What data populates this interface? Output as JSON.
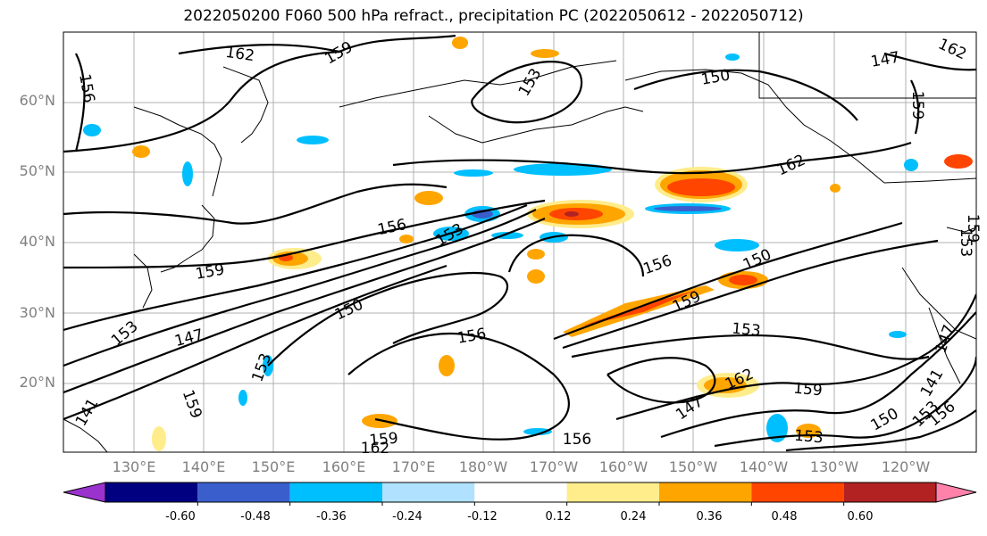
{
  "title": "2022050200 F060 500 hPa refract., precipitation PC (2022050612 - 2022050712)",
  "lat_labels": [
    "60°N",
    "50°N",
    "40°N",
    "30°N",
    "20°N"
  ],
  "lon_labels": [
    "130°E",
    "140°E",
    "150°E",
    "160°E",
    "170°E",
    "180°W",
    "170°W",
    "160°W",
    "150°W",
    "140°W",
    "130°W",
    "120°W"
  ],
  "colorbar": {
    "ticks": [
      "-0.60",
      "-0.48",
      "-0.36",
      "-0.24",
      "-0.12",
      "0.12",
      "0.24",
      "0.36",
      "0.48",
      "0.60"
    ],
    "colors": [
      "#9a32cd",
      "#000080",
      "#3a5fcd",
      "#00bfff",
      "#b0e2ff",
      "#ffffff",
      "#ffec8b",
      "#ffa500",
      "#ff4500",
      "#b22222",
      "#ff82ab"
    ]
  },
  "contour_labels": [
    "162",
    "159",
    "156",
    "153",
    "150",
    "147",
    "162",
    "159",
    "162",
    "156",
    "153",
    "159",
    "156",
    "150",
    "150",
    "159",
    "153",
    "153",
    "147",
    "156",
    "159",
    "162",
    "153",
    "159",
    "147",
    "159",
    "162",
    "150",
    "153",
    "156",
    "141",
    "159",
    "156",
    "153",
    "153",
    "147",
    "141"
  ]
}
